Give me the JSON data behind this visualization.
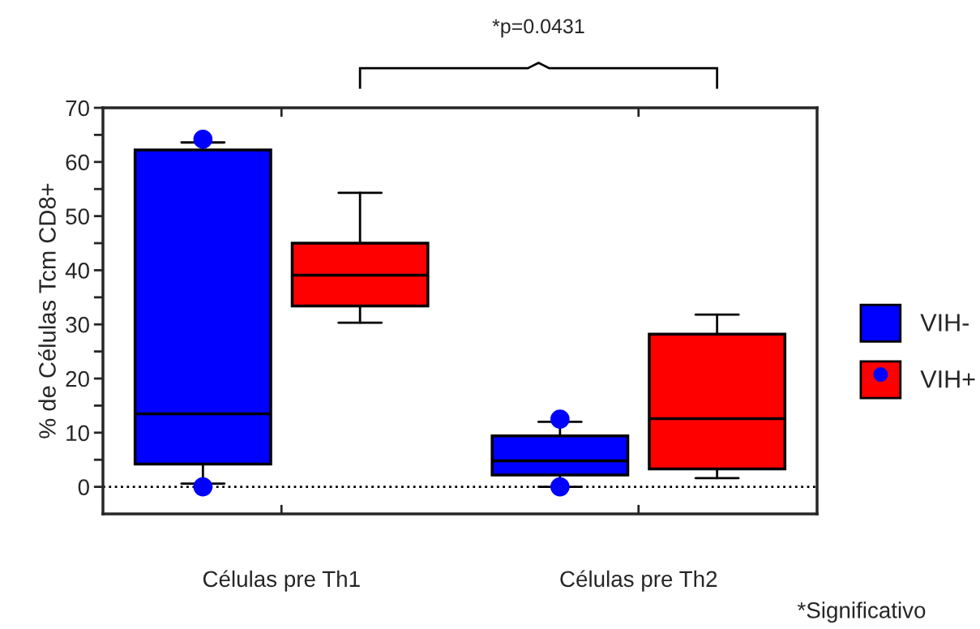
{
  "chart_data": {
    "type": "box",
    "categories": [
      "Células pre Th1",
      "Células pre Th2"
    ],
    "ylabel": "% de Células Tcm CD8+",
    "series": [
      {
        "name": "VIH-",
        "color": "#0000ff",
        "boxes": [
          {
            "low": 0.6,
            "q1": 4.2,
            "median": 13.5,
            "q3": 62.2,
            "high": 63.6,
            "outliers": [
              64.2,
              0
            ]
          },
          {
            "low": 0,
            "q1": 2.2,
            "median": 4.8,
            "q3": 9.4,
            "high": 12,
            "outliers": [
              12.5,
              0
            ]
          }
        ]
      },
      {
        "name": "VIH+",
        "color": "#ff0000",
        "boxes": [
          {
            "low": 30.3,
            "q1": 33.4,
            "median": 39.1,
            "q3": 45,
            "high": 54.3
          },
          {
            "low": 1.6,
            "q1": 3.3,
            "median": 12.6,
            "q3": 28.2,
            "high": 31.8
          }
        ]
      }
    ],
    "marker": "circle",
    "ylim": [
      -5,
      70
    ],
    "yticks": [
      0,
      {
        "value": 5,
        "label": null
      },
      10,
      {
        "value": 15,
        "label": null
      },
      20,
      {
        "value": 25,
        "label": null
      },
      30,
      {
        "value": 35,
        "label": null
      },
      40,
      {
        "value": 45,
        "label": null
      },
      50,
      {
        "value": 55,
        "label": null
      },
      60,
      {
        "value": 65,
        "label": null
      },
      70
    ],
    "ref_lines": [
      {
        "axis": "y",
        "value": 0,
        "color": "#000000",
        "line_style": "dotted"
      }
    ],
    "grid": false,
    "legend": "right",
    "annotations": [
      "*p=0.0431",
      "*Significativo"
    ]
  }
}
